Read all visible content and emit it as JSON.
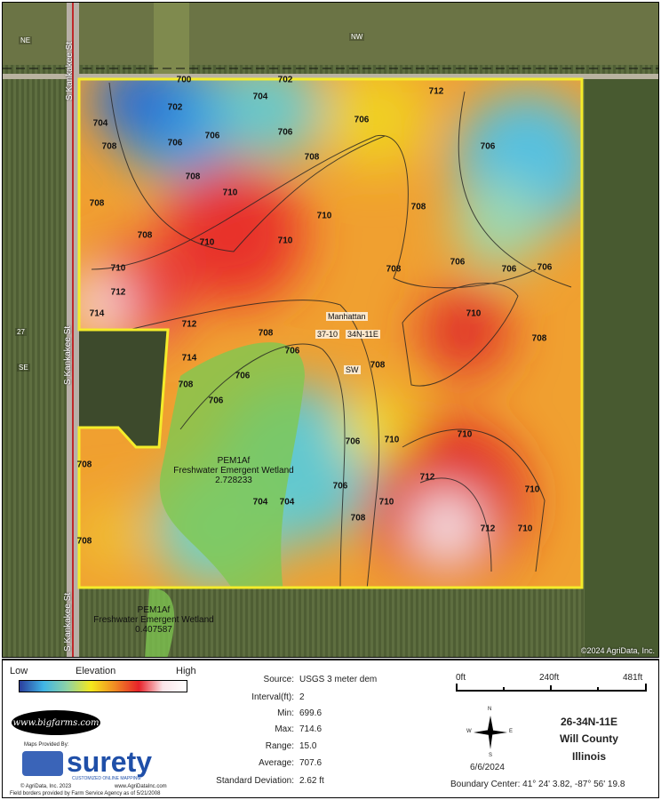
{
  "map": {
    "roads": {
      "west_road": "S Kankakee St",
      "west_road_2": "S Kankakee St",
      "west_road_3": "S Kankakee St"
    },
    "directions": {
      "ne": "NE",
      "nw": "NW",
      "se": "SE",
      "sw": "SW",
      "num": "27"
    },
    "plss": {
      "township": "Manhattan",
      "section": "37-10",
      "range": "34N-11E"
    },
    "wetlands": [
      {
        "code": "PEM1Af",
        "name": "Freshwater Emergent Wetland",
        "acres": "2.728233"
      },
      {
        "code": "PEM1Af",
        "name": "Freshwater Emergent Wetland",
        "acres": "0.407587"
      }
    ],
    "contour_labels": [
      "700",
      "702",
      "702",
      "704",
      "704",
      "706",
      "706",
      "706",
      "706",
      "708",
      "708",
      "708",
      "708",
      "708",
      "710",
      "710",
      "710",
      "710",
      "712",
      "714",
      "712",
      "714",
      "712",
      "710",
      "708",
      "706",
      "706",
      "708",
      "706",
      "708",
      "708",
      "706",
      "710",
      "706",
      "708",
      "708",
      "710",
      "710",
      "712",
      "712",
      "710",
      "708",
      "704",
      "706",
      "708",
      "708",
      "704",
      "706",
      "706",
      "706",
      "710",
      "710"
    ],
    "copyright": "©2024 AgriData, Inc."
  },
  "legend": {
    "low": "Low",
    "title": "Elevation",
    "high": "High",
    "colors": [
      "#2b3e9c",
      "#3fb4e6",
      "#8fd3a4",
      "#f5e81c",
      "#f08a24",
      "#e8222a",
      "#fbe4e8",
      "#ffffff"
    ]
  },
  "stats": {
    "source_label": "Source:",
    "source": "USGS 3 meter dem",
    "interval_label": "Interval(ft):",
    "interval": "2",
    "min_label": "Min:",
    "min": "699.6",
    "max_label": "Max:",
    "max": "714.6",
    "range_label": "Range:",
    "range": "15.0",
    "avg_label": "Average:",
    "avg": "707.6",
    "sd_label": "Standard Deviation:",
    "sd": "2.62 ft"
  },
  "scale": {
    "s0": "0ft",
    "s1": "240ft",
    "s2": "481ft"
  },
  "compass": {
    "n": "N",
    "s": "S",
    "e": "E",
    "w": "W"
  },
  "date": "6/6/2024",
  "location": {
    "section": "26-34N-11E",
    "county": "Will County",
    "state": "Illinois"
  },
  "boundary_center": "Boundary Center: 41° 24' 3.82,  -87° 56' 19.8",
  "branding": {
    "bigfarms": "www.bigfarms.com",
    "provided": "Maps Provided By:",
    "surety": "surety",
    "surety_tag": "CUSTOMIZED ONLINE MAPPING",
    "agridata": "© AgriData, Inc. 2023",
    "agridata_url": "www.AgriDataInc.com",
    "fsa": "Field borders provided by Farm Service Agency as of 5/21/2008"
  }
}
